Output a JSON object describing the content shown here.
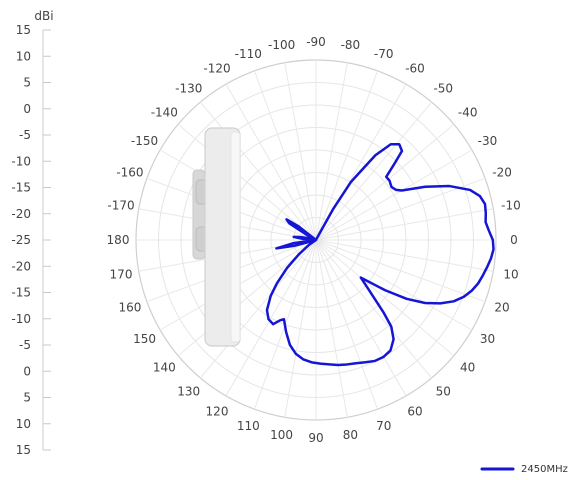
{
  "chart_data": {
    "type": "polar-line",
    "title": "",
    "radial_axis": {
      "unit": "dBi",
      "tick_labels": [
        "15",
        "10",
        "5",
        "0",
        "-5",
        "-10",
        "-15",
        "-20",
        "-25",
        "-20",
        "-15",
        "-10",
        "-5",
        "0",
        "5",
        "10",
        "15"
      ],
      "range": [
        -25,
        15
      ],
      "grid": true
    },
    "angular_axis": {
      "labels": [
        {
          "deg": -90,
          "label": "-90"
        },
        {
          "deg": -80,
          "label": "-80"
        },
        {
          "deg": -70,
          "label": "-70"
        },
        {
          "deg": -60,
          "label": "-60"
        },
        {
          "deg": -50,
          "label": "-50"
        },
        {
          "deg": -40,
          "label": "-40"
        },
        {
          "deg": -30,
          "label": "-30"
        },
        {
          "deg": -20,
          "label": "-20"
        },
        {
          "deg": -10,
          "label": "-10"
        },
        {
          "deg": 0,
          "label": "0"
        },
        {
          "deg": 10,
          "label": "10"
        },
        {
          "deg": 20,
          "label": "20"
        },
        {
          "deg": 30,
          "label": "30"
        },
        {
          "deg": 40,
          "label": "40"
        },
        {
          "deg": 50,
          "label": "50"
        },
        {
          "deg": 60,
          "label": "60"
        },
        {
          "deg": 70,
          "label": "70"
        },
        {
          "deg": 80,
          "label": "80"
        },
        {
          "deg": 90,
          "label": "90"
        },
        {
          "deg": 100,
          "label": "100"
        },
        {
          "deg": 110,
          "label": "110"
        },
        {
          "deg": 120,
          "label": "120"
        },
        {
          "deg": 130,
          "label": "130"
        },
        {
          "deg": 140,
          "label": "140"
        },
        {
          "deg": 150,
          "label": "150"
        },
        {
          "deg": 160,
          "label": "160"
        },
        {
          "deg": 170,
          "label": "170"
        },
        {
          "deg": 180,
          "label": "180"
        },
        {
          "deg": -170,
          "label": "-170"
        },
        {
          "deg": -160,
          "label": "-160"
        },
        {
          "deg": -150,
          "label": "-150"
        },
        {
          "deg": -140,
          "label": "-140"
        },
        {
          "deg": -130,
          "label": "-130"
        },
        {
          "deg": -120,
          "label": "-120"
        },
        {
          "deg": -110,
          "label": "-110"
        },
        {
          "deg": -100,
          "label": "-100"
        }
      ],
      "spacing_deg": 10,
      "grid": true
    },
    "series": [
      {
        "name": "2450MHz",
        "color": "#1515d6",
        "points": [
          {
            "angle": -90,
            "dBi": -25
          },
          {
            "angle": -80,
            "dBi": -25
          },
          {
            "angle": -70,
            "dBi": -25
          },
          {
            "angle": -64,
            "dBi": -24.5
          },
          {
            "angle": -61,
            "dBi": -17
          },
          {
            "angle": -59,
            "dBi": -10
          },
          {
            "angle": -55,
            "dBi": -2
          },
          {
            "angle": -52,
            "dBi": 2
          },
          {
            "angle": -49,
            "dBi": 3.2
          },
          {
            "angle": -46,
            "dBi": 2.5
          },
          {
            "angle": -44,
            "dBi": -1
          },
          {
            "angle": -42,
            "dBi": -4
          },
          {
            "angle": -39,
            "dBi": -4
          },
          {
            "angle": -35,
            "dBi": -4.5
          },
          {
            "angle": -32,
            "dBi": -4
          },
          {
            "angle": -30,
            "dBi": -3
          },
          {
            "angle": -26,
            "dBi": 2
          },
          {
            "angle": -22,
            "dBi": 7
          },
          {
            "angle": -18,
            "dBi": 11
          },
          {
            "angle": -15,
            "dBi": 12.7
          },
          {
            "angle": -12,
            "dBi": 13.4
          },
          {
            "angle": -9,
            "dBi": 13.2
          },
          {
            "angle": -6,
            "dBi": 12.9
          },
          {
            "angle": -3,
            "dBi": 13.5
          },
          {
            "angle": 0,
            "dBi": 14.3
          },
          {
            "angle": 3,
            "dBi": 14.5
          },
          {
            "angle": 6,
            "dBi": 14.1
          },
          {
            "angle": 9,
            "dBi": 13.5
          },
          {
            "angle": 12,
            "dBi": 12.9
          },
          {
            "angle": 15,
            "dBi": 12.3
          },
          {
            "angle": 18,
            "dBi": 11.4
          },
          {
            "angle": 21,
            "dBi": 10.2
          },
          {
            "angle": 24,
            "dBi": 8.5
          },
          {
            "angle": 27,
            "dBi": 6
          },
          {
            "angle": 30,
            "dBi": 3
          },
          {
            "angle": 33,
            "dBi": -1
          },
          {
            "angle": 36,
            "dBi": -6
          },
          {
            "angle": 40,
            "dBi": -12
          },
          {
            "angle": 44,
            "dBi": -8
          },
          {
            "angle": 47,
            "dBi": -3
          },
          {
            "angle": 49,
            "dBi": 0.5
          },
          {
            "angle": 52,
            "dBi": 3
          },
          {
            "angle": 56,
            "dBi": 4.6
          },
          {
            "angle": 60,
            "dBi": 5
          },
          {
            "angle": 64,
            "dBi": 4.9
          },
          {
            "angle": 68,
            "dBi": 4.3
          },
          {
            "angle": 72,
            "dBi": 3.8
          },
          {
            "angle": 76,
            "dBi": 3.5
          },
          {
            "angle": 80,
            "dBi": 3.2
          },
          {
            "angle": 84,
            "dBi": 2.8
          },
          {
            "angle": 88,
            "dBi": 2.5
          },
          {
            "angle": 92,
            "dBi": 2.2
          },
          {
            "angle": 96,
            "dBi": 1.7
          },
          {
            "angle": 100,
            "dBi": 0.7
          },
          {
            "angle": 104,
            "dBi": -1
          },
          {
            "angle": 108,
            "dBi": -3.5
          },
          {
            "angle": 112,
            "dBi": -6
          },
          {
            "angle": 114,
            "dBi": -5.5
          },
          {
            "angle": 117,
            "dBi": -4
          },
          {
            "angle": 121,
            "dBi": -4.5
          },
          {
            "angle": 125,
            "dBi": -6
          },
          {
            "angle": 129,
            "dBi": -9
          },
          {
            "angle": 132,
            "dBi": -12
          },
          {
            "angle": 136,
            "dBi": -16
          },
          {
            "angle": 140,
            "dBi": -20
          },
          {
            "angle": 145,
            "dBi": -23
          },
          {
            "angle": 150,
            "dBi": -25
          },
          {
            "angle": 160,
            "dBi": -25
          },
          {
            "angle": 165,
            "dBi": -20
          },
          {
            "angle": 168,
            "dBi": -16
          },
          {
            "angle": 172,
            "dBi": -20
          },
          {
            "angle": 175,
            "dBi": -25
          },
          {
            "angle": 180,
            "dBi": -25
          },
          {
            "angle": -175,
            "dBi": -22
          },
          {
            "angle": -172,
            "dBi": -20
          },
          {
            "angle": -169,
            "dBi": -21.5
          },
          {
            "angle": -166,
            "dBi": -24
          },
          {
            "angle": -160,
            "dBi": -25
          },
          {
            "angle": -152,
            "dBi": -23
          },
          {
            "angle": -148,
            "dBi": -18
          },
          {
            "angle": -145,
            "dBi": -17
          },
          {
            "angle": -142,
            "dBi": -20
          },
          {
            "angle": -138,
            "dBi": -25
          },
          {
            "angle": -120,
            "dBi": -25
          },
          {
            "angle": -110,
            "dBi": -25
          },
          {
            "angle": -100,
            "dBi": -25
          },
          {
            "angle": -90,
            "dBi": -25
          }
        ]
      }
    ],
    "legend": {
      "placement": "bottom-right",
      "entries": [
        "2450MHz"
      ]
    }
  }
}
